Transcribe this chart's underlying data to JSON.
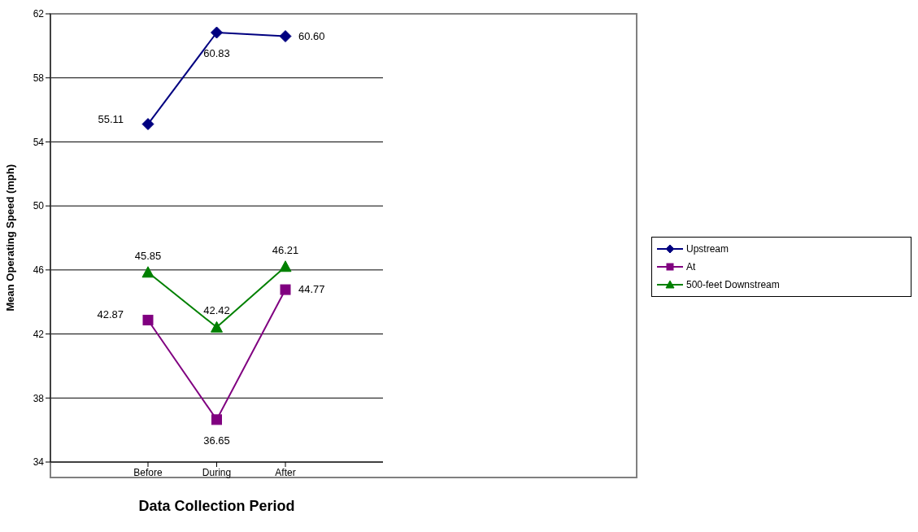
{
  "chart_data": {
    "type": "line",
    "xlabel": "Data Collection Period",
    "ylabel": "Mean Operating Speed (mph)",
    "categories": [
      "Before",
      "During",
      "After"
    ],
    "series": [
      {
        "name": "Upstream",
        "color": "#000080",
        "marker": "diamond",
        "values": [
          55.11,
          60.83,
          60.6
        ]
      },
      {
        "name": "At",
        "color": "#800080",
        "marker": "square",
        "values": [
          42.87,
          36.65,
          44.77
        ]
      },
      {
        "name": "500-feet Downstream",
        "color": "#008000",
        "marker": "triangle",
        "values": [
          45.85,
          42.42,
          46.21
        ]
      }
    ],
    "value_labels": [
      [
        "55.11",
        "60.83",
        "60.60"
      ],
      [
        "42.87",
        "36.65",
        "44.77"
      ],
      [
        "45.85",
        "42.42",
        "46.21"
      ]
    ],
    "ylim": [
      34,
      62
    ],
    "yticks": [
      34,
      38,
      42,
      46,
      50,
      54,
      58,
      62
    ],
    "grid": "y",
    "legend": "right"
  }
}
